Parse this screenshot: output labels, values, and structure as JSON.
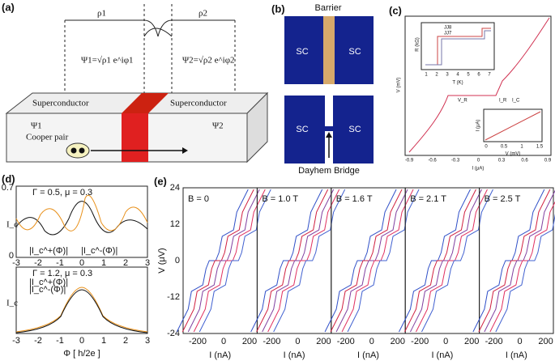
{
  "a": {
    "label": "(a)",
    "rho1": "ρ1",
    "rho2": "ρ2",
    "psi1_eq": "Ψ1=√ρ1 e^iφ1",
    "psi2_eq": "Ψ2=√ρ2 e^iφ2",
    "sc_left": "Superconductor",
    "sc_right": "Superconductor",
    "psi1": "Ψ1",
    "psi2": "Ψ2",
    "cooper": "Cooper pair"
  },
  "b": {
    "label": "(b)",
    "barrier": "Barrier",
    "sc": [
      "SC",
      "SC",
      "SC",
      "SC"
    ],
    "bridge": "Dayhem Bridge"
  },
  "c": {
    "label": "(c)",
    "ylabel": "V (mV)",
    "xlabel": "I (μA)",
    "xticks": [
      "-0.9",
      "-0.6",
      "-0.3",
      "0",
      "0.3",
      "0.6",
      "0.9"
    ],
    "vr": "V_R",
    "ir": "I_R",
    "ic": "I_C",
    "inset1": {
      "legend": [
        "JJ8",
        "JJ7"
      ],
      "xlabel": "T (K)",
      "ylabel": "R (kΩ)",
      "xticks": [
        "1",
        "2",
        "3",
        "4",
        "5",
        "6",
        "7"
      ]
    },
    "inset2": {
      "xlabel": "V (mV)",
      "ylabel": "I (μA)",
      "xticks": [
        "0",
        "0.5",
        "1",
        "1.5"
      ]
    }
  },
  "d": {
    "label": "(d)",
    "top": {
      "params": "Γ = 0.5, μ = 0.3",
      "yticks": [
        "0",
        "0.7"
      ],
      "legend": [
        "|I_c^+(Φ)|",
        "|I_c^-(Φ)|"
      ]
    },
    "bottom": {
      "params": "Γ = 1.2, μ = 0.3",
      "legend": [
        "|I_c^+(Φ)|",
        "|I_c^-(Φ)|"
      ]
    },
    "ylabel": "I_c",
    "xticks": [
      "-3",
      "-2",
      "-1",
      "0",
      "1",
      "2",
      "3"
    ],
    "xlabel": "Φ [ h/2e ]"
  },
  "e": {
    "label": "(e)",
    "ylabel": "V (μV)",
    "yticks": [
      "24",
      "12",
      "0",
      "-12",
      "-24"
    ],
    "panels": [
      {
        "field": "B = 0",
        "xticks": [
          "-200",
          "0",
          "200"
        ],
        "xlabel": "I (nA)"
      },
      {
        "field": "B = 1.0 T",
        "xticks": [
          "-200",
          "0",
          "200"
        ],
        "xlabel": "I (nA)"
      },
      {
        "field": "B = 1.6 T",
        "xticks": [
          "-200",
          "0",
          "200"
        ],
        "xlabel": "I (nA)"
      },
      {
        "field": "B = 2.1 T",
        "xticks": [
          "-200",
          "0",
          "200"
        ],
        "xlabel": "I (nA)"
      },
      {
        "field": "B = 2.5 T",
        "xticks": [
          "-200",
          "0",
          "200"
        ],
        "xlabel": "I (nA)"
      }
    ]
  }
}
